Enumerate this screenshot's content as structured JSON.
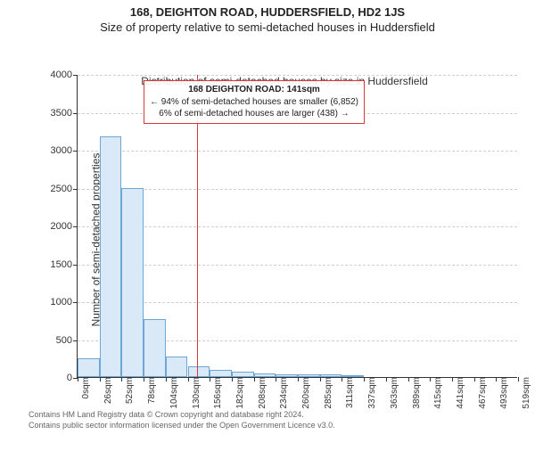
{
  "title_line1": "168, DEIGHTON ROAD, HUDDERSFIELD, HD2 1JS",
  "title_line2": "Size of property relative to semi-detached houses in Huddersfield",
  "chart": {
    "type": "histogram",
    "ylabel": "Number of semi-detached properties",
    "xlabel": "Distribution of semi-detached houses by size in Huddersfield",
    "ylim": [
      0,
      4000
    ],
    "ytick_step": 500,
    "yticks": [
      0,
      500,
      1000,
      1500,
      2000,
      2500,
      3000,
      3500,
      4000
    ],
    "xtick_labels": [
      "0sqm",
      "26sqm",
      "52sqm",
      "78sqm",
      "104sqm",
      "130sqm",
      "156sqm",
      "182sqm",
      "208sqm",
      "234sqm",
      "260sqm",
      "285sqm",
      "311sqm",
      "337sqm",
      "363sqm",
      "389sqm",
      "415sqm",
      "441sqm",
      "467sqm",
      "493sqm",
      "519sqm"
    ],
    "bars": [
      250,
      3180,
      2500,
      770,
      270,
      140,
      100,
      70,
      50,
      40,
      35,
      30,
      25,
      0,
      0,
      0,
      0,
      0,
      0,
      0
    ],
    "bar_fill": "#d9e9f7",
    "bar_stroke": "#6aa7d6",
    "grid_color": "#cfcfcf",
    "background": "#ffffff",
    "marker": {
      "position_sqm": 141,
      "color": "#d63a3a",
      "box_lines": [
        "168 DEIGHTON ROAD: 141sqm",
        "← 94% of semi-detached houses are smaller (6,852)",
        "6% of semi-detached houses are larger (438) →"
      ]
    }
  },
  "footer_line1": "Contains HM Land Registry data © Crown copyright and database right 2024.",
  "footer_line2": "Contains public sector information licensed under the Open Government Licence v3.0."
}
